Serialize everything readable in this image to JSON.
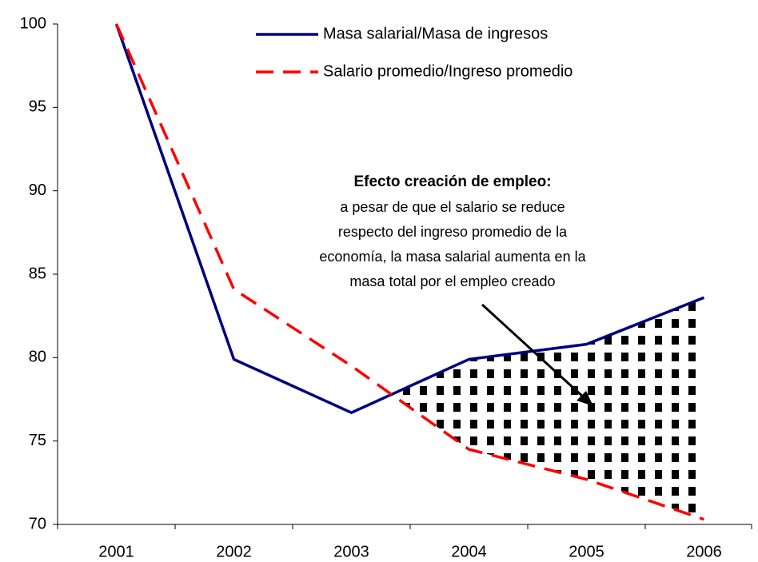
{
  "chart_data": {
    "type": "line",
    "categories": [
      "2001",
      "2002",
      "2003",
      "2004",
      "2005",
      "2006"
    ],
    "series": [
      {
        "name": "Masa salarial/Masa de ingresos",
        "color": "#000080",
        "dash": "solid",
        "values": [
          100,
          79.9,
          76.7,
          79.9,
          80.8,
          83.6
        ]
      },
      {
        "name": "Salario promedio/Ingreso promedio",
        "color": "#ff0000",
        "dash": "dashed",
        "values": [
          100,
          84.1,
          79.5,
          74.5,
          72.7,
          70.3
        ]
      }
    ],
    "ylim": [
      70,
      100
    ],
    "yticks": [
      70,
      75,
      80,
      85,
      90,
      95,
      100
    ],
    "annotation": {
      "title": "Efecto creación de empleo:",
      "lines": [
        "a pesar de que el salario se reduce",
        "respecto del ingreso promedio de la",
        "economía, la masa salarial aumenta en la",
        "masa total por el empleo creado"
      ]
    }
  }
}
